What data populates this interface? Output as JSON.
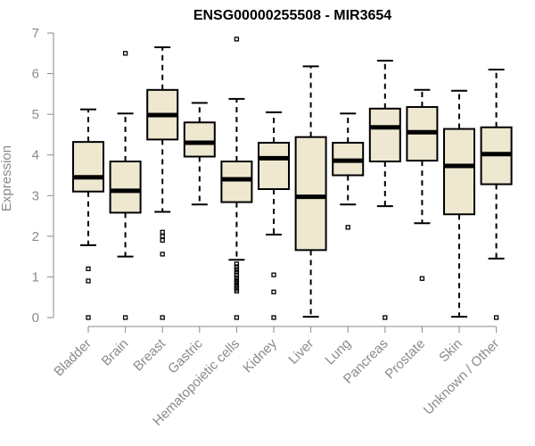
{
  "chart_data": {
    "type": "box",
    "title": "ENSG00000255508 - MIR3654",
    "xlabel": "",
    "ylabel": "Expression",
    "ylim": [
      0,
      7
    ],
    "yticks": [
      0,
      1,
      2,
      3,
      4,
      5,
      6,
      7
    ],
    "box_fill": "#eee8d0",
    "categories": [
      "Bladder",
      "Brain",
      "Breast",
      "Gastric",
      "Hematopoietic cells",
      "Kidney",
      "Liver",
      "Lung",
      "Pancreas",
      "Prostate",
      "Skin",
      "Unknown / Other"
    ],
    "boxes": [
      {
        "name": "Bladder",
        "whisker_low": 1.78,
        "q1": 3.1,
        "median": 3.45,
        "q3": 4.32,
        "whisker_high": 5.12,
        "outliers": [
          1.2,
          0.9,
          0.0
        ]
      },
      {
        "name": "Brain",
        "whisker_low": 1.5,
        "q1": 2.58,
        "median": 3.12,
        "q3": 3.84,
        "whisker_high": 5.02,
        "outliers": [
          6.5,
          0.0
        ]
      },
      {
        "name": "Breast",
        "whisker_low": 2.6,
        "q1": 4.38,
        "median": 4.98,
        "q3": 5.6,
        "whisker_high": 6.65,
        "outliers": [
          2.1,
          2.0,
          1.9,
          1.56,
          0.0
        ]
      },
      {
        "name": "Gastric",
        "whisker_low": 2.78,
        "q1": 3.96,
        "median": 4.3,
        "q3": 4.8,
        "whisker_high": 5.28,
        "outliers": []
      },
      {
        "name": "Hematopoietic cells",
        "whisker_low": 1.42,
        "q1": 2.84,
        "median": 3.4,
        "q3": 3.84,
        "whisker_high": 5.38,
        "outliers": [
          6.85,
          1.32,
          1.25,
          1.18,
          1.12,
          1.05,
          0.98,
          0.92,
          0.86,
          0.8,
          0.75,
          0.7,
          0.65,
          0.0
        ]
      },
      {
        "name": "Kidney",
        "whisker_low": 2.04,
        "q1": 3.16,
        "median": 3.92,
        "q3": 4.3,
        "whisker_high": 5.05,
        "outliers": [
          1.05,
          0.63,
          0.0
        ]
      },
      {
        "name": "Liver",
        "whisker_low": 0.02,
        "q1": 1.66,
        "median": 2.97,
        "q3": 4.44,
        "whisker_high": 6.18,
        "outliers": []
      },
      {
        "name": "Lung",
        "whisker_low": 2.78,
        "q1": 3.5,
        "median": 3.86,
        "q3": 4.3,
        "whisker_high": 5.02,
        "outliers": [
          2.22
        ]
      },
      {
        "name": "Pancreas",
        "whisker_low": 2.74,
        "q1": 3.84,
        "median": 4.68,
        "q3": 5.14,
        "whisker_high": 6.32,
        "outliers": [
          0.0
        ]
      },
      {
        "name": "Prostate",
        "whisker_low": 2.32,
        "q1": 3.86,
        "median": 4.56,
        "q3": 5.18,
        "whisker_high": 5.6,
        "outliers": [
          0.96
        ]
      },
      {
        "name": "Skin",
        "whisker_low": 0.02,
        "q1": 2.54,
        "median": 3.73,
        "q3": 4.64,
        "whisker_high": 5.58,
        "outliers": []
      },
      {
        "name": "Unknown / Other",
        "whisker_low": 1.45,
        "q1": 3.28,
        "median": 4.02,
        "q3": 4.68,
        "whisker_high": 6.1,
        "outliers": [
          0.0
        ]
      }
    ]
  }
}
